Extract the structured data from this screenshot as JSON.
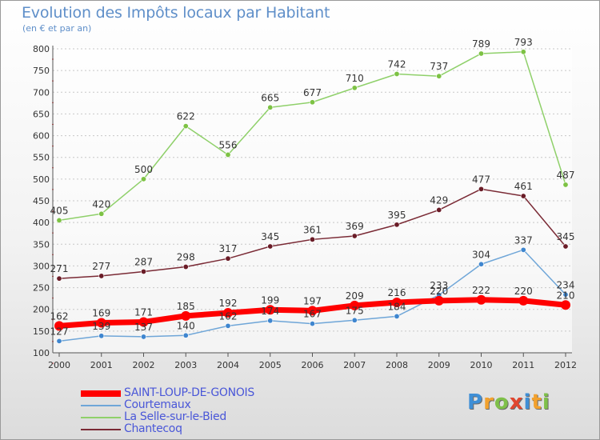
{
  "title": "Evolution des Impôts locaux par Habitant",
  "subtitle": "(en € et par an)",
  "logo": {
    "text": "Proxiti",
    "letters": [
      {
        "ch": "P",
        "color": "#3f8fd6"
      },
      {
        "ch": "r",
        "color": "#f2a12e"
      },
      {
        "ch": "o",
        "color": "#7fc04a"
      },
      {
        "ch": "x",
        "color": "#e0462e"
      },
      {
        "ch": "i",
        "color": "#3f8fd6"
      },
      {
        "ch": "t",
        "color": "#f2a12e"
      },
      {
        "ch": "i",
        "color": "#7fc04a"
      }
    ]
  },
  "chart_data": {
    "type": "line",
    "x": [
      "2000",
      "2001",
      "2002",
      "2003",
      "2004",
      "2005",
      "2006",
      "2007",
      "2008",
      "2009",
      "2010",
      "2011",
      "2012"
    ],
    "ylim": [
      100,
      800
    ],
    "yticks": [
      100,
      150,
      200,
      250,
      300,
      350,
      400,
      450,
      500,
      550,
      600,
      650,
      700,
      750,
      800
    ],
    "grid": "horizontal-dashed",
    "legend_position": "bottom-left",
    "series": [
      {
        "name": "La Selle-sur-le-Bied",
        "color": "#8fd06a",
        "marker_color": "#7dc244",
        "width": 1.5,
        "marker_r": 3.2,
        "values": [
          405,
          420,
          500,
          622,
          556,
          665,
          677,
          710,
          742,
          737,
          789,
          793,
          487
        ]
      },
      {
        "name": "Chantecoq",
        "color": "#7a2a35",
        "marker_color": "#6a1c27",
        "width": 1.5,
        "marker_r": 3.2,
        "values": [
          271,
          277,
          287,
          298,
          317,
          345,
          361,
          369,
          395,
          429,
          477,
          461,
          345
        ]
      },
      {
        "name": "Courtemaux",
        "color": "#6fa6d8",
        "marker_color": "#3f86cf",
        "width": 1.5,
        "marker_r": 3.2,
        "values": [
          127,
          139,
          137,
          140,
          162,
          174,
          167,
          175,
          184,
          233,
          304,
          337,
          234
        ]
      },
      {
        "name": "SAINT-LOUP-DE-GONOIS",
        "color": "#ff0000",
        "marker_color": "#ff0000",
        "width": 7,
        "marker_r": 6,
        "values": [
          162,
          169,
          171,
          185,
          192,
          199,
          197,
          209,
          216,
          220,
          222,
          220,
          210
        ]
      }
    ],
    "legend_order": [
      "SAINT-LOUP-DE-GONOIS",
      "Courtemaux",
      "La Selle-sur-le-Bied",
      "Chantecoq"
    ],
    "label_order": [
      "La Selle-sur-le-Bied",
      "Chantecoq",
      "Courtemaux",
      "SAINT-LOUP-DE-GONOIS"
    ]
  }
}
